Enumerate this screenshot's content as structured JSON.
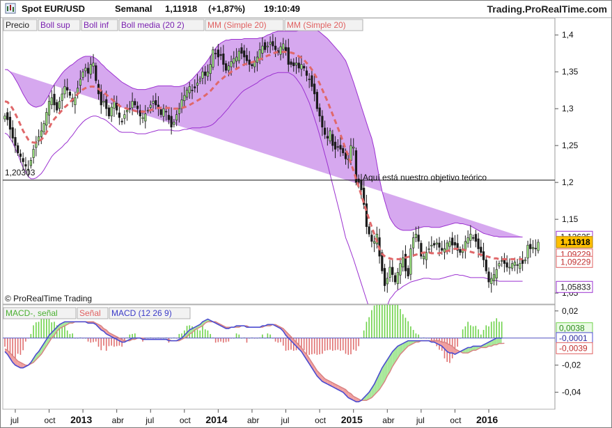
{
  "header": {
    "instrument": "Spot EUR/USD",
    "timeframe": "Semanal",
    "last_price": "1,11918",
    "change": "(+1,87%)",
    "time": "19:10:49",
    "brand": "Trading.ProRealTime.com"
  },
  "colors": {
    "band_fill": "#d6a8ef",
    "band_line": "#9b30d0",
    "sma": "#e0686a",
    "candle_up": "#9be37f",
    "candle_down": "#1a1a1a",
    "macd_line": "#4b4bd0",
    "signal_line": "#d88080",
    "hist_pos": "#6ed24a",
    "hist_neg": "#e07070",
    "last_price_bg": "#ffc000"
  },
  "chart_data": [
    {
      "type": "candlestick",
      "legend": [
        "Precio",
        "Boll sup",
        "Boll inf",
        "Boll media (20 2)",
        "MM (Simple 20)",
        "MM (Simple 20)"
      ],
      "y_ticks": [
        "1,4",
        "1,35",
        "1,3",
        "1,25",
        "1,2",
        "1,15",
        "1,05"
      ],
      "ylim": [
        1.035,
        1.42
      ],
      "price_labels": {
        "boll_sup": "1,12625",
        "last": "1,11918",
        "hidden": "1,09229",
        "boll_inf": "1,05833"
      },
      "horizontal_line": {
        "value": 1.20303,
        "label": "1,20303"
      },
      "annotation": "Aquí está nuestro objetivo teórico",
      "copyright": "© ProRealTime Trading",
      "series": {
        "close": [
          1.29,
          1.285,
          1.272,
          1.26,
          1.25,
          1.24,
          1.235,
          1.228,
          1.222,
          1.218,
          1.23,
          1.245,
          1.255,
          1.262,
          1.27,
          1.28,
          1.295,
          1.31,
          1.315,
          1.305,
          1.298,
          1.31,
          1.32,
          1.33,
          1.325,
          1.318,
          1.31,
          1.315,
          1.328,
          1.34,
          1.35,
          1.355,
          1.348,
          1.36,
          1.362,
          1.338,
          1.32,
          1.305,
          1.31,
          1.3,
          1.29,
          1.302,
          1.31,
          1.298,
          1.288,
          1.282,
          1.292,
          1.298,
          1.3,
          1.31,
          1.305,
          1.3,
          1.29,
          1.288,
          1.293,
          1.298,
          1.305,
          1.31,
          1.305,
          1.3,
          1.292,
          1.3,
          1.296,
          1.285,
          1.275,
          1.282,
          1.292,
          1.3,
          1.312,
          1.318,
          1.325,
          1.33,
          1.325,
          1.328,
          1.335,
          1.34,
          1.35,
          1.345,
          1.35,
          1.36,
          1.38,
          1.375,
          1.37,
          1.372,
          1.36,
          1.352,
          1.358,
          1.364,
          1.368,
          1.37,
          1.378,
          1.375,
          1.37,
          1.365,
          1.36,
          1.358,
          1.365,
          1.37,
          1.38,
          1.385,
          1.38,
          1.385,
          1.39,
          1.385,
          1.38,
          1.376,
          1.384,
          1.388,
          1.378,
          1.36,
          1.36,
          1.358,
          1.362,
          1.355,
          1.36,
          1.355,
          1.345,
          1.34,
          1.33,
          1.32,
          1.3,
          1.29,
          1.275,
          1.265,
          1.26,
          1.27,
          1.25,
          1.245,
          1.248,
          1.245,
          1.24,
          1.232,
          1.232,
          1.25,
          1.248,
          1.2,
          1.2,
          1.19,
          1.17,
          1.14,
          1.13,
          1.12,
          1.12,
          1.13,
          1.1,
          1.08,
          1.06,
          1.07,
          1.085,
          1.075,
          1.065,
          1.078,
          1.09,
          1.098,
          1.08,
          1.073,
          1.11,
          1.125,
          1.13,
          1.12,
          1.1,
          1.1,
          1.105,
          1.11,
          1.115,
          1.115,
          1.118,
          1.112,
          1.108,
          1.11,
          1.118,
          1.12,
          1.115,
          1.115,
          1.108,
          1.105,
          1.11,
          1.12,
          1.125,
          1.13,
          1.125,
          1.12,
          1.11,
          1.105,
          1.095,
          1.08,
          1.065,
          1.07,
          1.075,
          1.082,
          1.09,
          1.094,
          1.09,
          1.085,
          1.085,
          1.09,
          1.092,
          1.088,
          1.09,
          1.09,
          1.095,
          1.115,
          1.11,
          1.112,
          1.11,
          1.119
        ],
        "sma20": [
          1.31,
          1.309,
          1.305,
          1.3,
          1.293,
          1.286,
          1.278,
          1.27,
          1.264,
          1.258,
          1.255,
          1.254,
          1.254,
          1.256,
          1.258,
          1.262,
          1.268,
          1.274,
          1.281,
          1.286,
          1.29,
          1.294,
          1.298,
          1.302,
          1.305,
          1.309,
          1.312,
          1.316,
          1.32,
          1.323,
          1.326,
          1.328,
          1.329,
          1.33,
          1.33,
          1.329,
          1.327,
          1.324,
          1.322,
          1.319,
          1.316,
          1.313,
          1.31,
          1.307,
          1.304,
          1.302,
          1.301,
          1.3,
          1.299,
          1.298,
          1.297,
          1.296,
          1.296,
          1.296,
          1.296,
          1.297,
          1.298,
          1.299,
          1.3,
          1.301,
          1.301,
          1.301,
          1.301,
          1.301,
          1.301,
          1.3,
          1.3,
          1.3,
          1.301,
          1.302,
          1.303,
          1.305,
          1.307,
          1.309,
          1.311,
          1.313,
          1.316,
          1.318,
          1.321,
          1.324,
          1.328,
          1.332,
          1.336,
          1.339,
          1.342,
          1.345,
          1.347,
          1.35,
          1.352,
          1.354,
          1.356,
          1.358,
          1.36,
          1.361,
          1.362,
          1.363,
          1.364,
          1.365,
          1.367,
          1.368,
          1.37,
          1.372,
          1.373,
          1.375,
          1.376,
          1.377,
          1.377,
          1.377,
          1.377,
          1.377,
          1.376,
          1.375,
          1.373,
          1.371,
          1.369,
          1.366,
          1.362,
          1.358,
          1.353,
          1.347,
          1.341,
          1.334,
          1.326,
          1.318,
          1.31,
          1.301,
          1.292,
          1.283,
          1.274,
          1.265,
          1.255,
          1.245,
          1.236,
          1.226,
          1.216,
          1.205,
          1.194,
          1.183,
          1.172,
          1.161,
          1.15,
          1.14,
          1.13,
          1.12,
          1.11,
          1.103,
          1.1,
          1.098,
          1.097,
          1.096,
          1.096,
          1.096,
          1.096,
          1.097,
          1.098,
          1.099,
          1.1,
          1.101,
          1.102,
          1.103,
          1.104,
          1.105,
          1.105,
          1.105,
          1.104,
          1.104,
          1.104,
          1.104,
          1.105,
          1.106,
          1.107,
          1.108,
          1.109,
          1.11,
          1.11,
          1.109,
          1.109,
          1.108,
          1.107,
          1.106,
          1.105,
          1.104,
          1.103,
          1.102,
          1.101,
          1.1,
          1.099,
          1.098,
          1.097,
          1.097,
          1.096,
          1.096,
          1.096,
          1.096,
          1.096,
          1.096,
          1.096,
          1.096,
          1.096,
          1.096
        ],
        "boll_width": [
          0.043,
          0.044,
          0.045,
          0.046,
          0.047,
          0.048,
          0.049,
          0.05,
          0.05,
          0.05,
          0.05,
          0.049,
          0.048,
          0.047,
          0.046,
          0.045,
          0.045,
          0.045,
          0.046,
          0.047,
          0.048,
          0.049,
          0.05,
          0.05,
          0.05,
          0.049,
          0.048,
          0.047,
          0.046,
          0.045,
          0.044,
          0.043,
          0.042,
          0.041,
          0.04,
          0.039,
          0.038,
          0.037,
          0.036,
          0.035,
          0.035,
          0.035,
          0.035,
          0.035,
          0.035,
          0.034,
          0.033,
          0.032,
          0.031,
          0.03,
          0.03,
          0.03,
          0.03,
          0.03,
          0.03,
          0.03,
          0.03,
          0.03,
          0.03,
          0.03,
          0.03,
          0.03,
          0.03,
          0.03,
          0.03,
          0.03,
          0.03,
          0.03,
          0.03,
          0.03,
          0.031,
          0.032,
          0.033,
          0.035,
          0.037,
          0.039,
          0.041,
          0.043,
          0.045,
          0.047,
          0.049,
          0.05,
          0.05,
          0.05,
          0.049,
          0.048,
          0.046,
          0.044,
          0.042,
          0.04,
          0.038,
          0.036,
          0.035,
          0.034,
          0.033,
          0.032,
          0.031,
          0.03,
          0.029,
          0.028,
          0.028,
          0.028,
          0.028,
          0.028,
          0.028,
          0.028,
          0.028,
          0.028,
          0.028,
          0.028,
          0.029,
          0.03,
          0.032,
          0.035,
          0.038,
          0.042,
          0.046,
          0.05,
          0.055,
          0.06,
          0.065,
          0.07,
          0.075,
          0.08,
          0.085,
          0.09,
          0.095,
          0.1,
          0.105,
          0.11,
          0.115,
          0.12,
          0.12,
          0.12,
          0.12,
          0.12,
          0.12,
          0.12,
          0.12,
          0.12,
          0.12,
          0.12,
          0.115,
          0.105,
          0.095,
          0.085,
          0.075,
          0.065,
          0.055,
          0.05,
          0.045,
          0.042,
          0.04,
          0.038,
          0.037,
          0.036,
          0.035,
          0.035,
          0.035,
          0.035,
          0.035,
          0.035,
          0.035,
          0.035,
          0.035,
          0.035,
          0.035,
          0.035,
          0.035,
          0.035,
          0.035,
          0.035,
          0.035,
          0.035,
          0.035,
          0.035,
          0.035,
          0.035,
          0.035,
          0.035,
          0.034,
          0.033,
          0.032,
          0.031,
          0.03,
          0.03,
          0.03,
          0.03,
          0.03,
          0.03,
          0.03,
          0.03,
          0.03,
          0.03,
          0.03,
          0.03,
          0.03,
          0.03,
          0.03,
          0.03,
          0.03
        ]
      }
    },
    {
      "type": "macd",
      "legend": [
        "MACD-, señal",
        "Señal",
        "MACD (12 26 9)"
      ],
      "y_ticks": [
        "0,02",
        "-0,02",
        "-0,04"
      ],
      "ylim": [
        -0.052,
        0.024
      ],
      "labels": {
        "hist": "0,0038",
        "macd": "-0,0001",
        "signal": "-0,0039"
      },
      "series": {
        "macd": [
          -0.01,
          -0.012,
          -0.015,
          -0.018,
          -0.02,
          -0.021,
          -0.022,
          -0.022,
          -0.021,
          -0.02,
          -0.018,
          -0.015,
          -0.012,
          -0.01,
          -0.007,
          -0.004,
          -0.001,
          0.002,
          0.004,
          0.006,
          0.008,
          0.01,
          0.011,
          0.012,
          0.012,
          0.012,
          0.012,
          0.012,
          0.012,
          0.012,
          0.012,
          0.012,
          0.011,
          0.011,
          0.011,
          0.01,
          0.008,
          0.006,
          0.005,
          0.003,
          0.002,
          0.001,
          0.0,
          -0.001,
          -0.002,
          -0.003,
          -0.003,
          -0.002,
          -0.001,
          0.0,
          0.0,
          0.0,
          0.0,
          -0.001,
          -0.001,
          -0.001,
          -0.001,
          -0.001,
          -0.001,
          -0.001,
          -0.001,
          -0.001,
          -0.001,
          -0.002,
          -0.002,
          -0.002,
          -0.002,
          -0.001,
          0.0,
          0.002,
          0.004,
          0.006,
          0.007,
          0.008,
          0.009,
          0.01,
          0.012,
          0.013,
          0.014,
          0.013,
          0.012,
          0.011,
          0.01,
          0.009,
          0.008,
          0.007,
          0.007,
          0.008,
          0.008,
          0.009,
          0.009,
          0.009,
          0.009,
          0.008,
          0.008,
          0.008,
          0.008,
          0.008,
          0.008,
          0.009,
          0.009,
          0.01,
          0.01,
          0.01,
          0.009,
          0.008,
          0.007,
          0.005,
          0.002,
          0.0,
          -0.002,
          -0.004,
          -0.006,
          -0.008,
          -0.01,
          -0.013,
          -0.016,
          -0.019,
          -0.022,
          -0.025,
          -0.028,
          -0.03,
          -0.032,
          -0.033,
          -0.034,
          -0.035,
          -0.036,
          -0.037,
          -0.038,
          -0.039,
          -0.04,
          -0.042,
          -0.044,
          -0.045,
          -0.046,
          -0.047,
          -0.047,
          -0.046,
          -0.044,
          -0.042,
          -0.04,
          -0.037,
          -0.034,
          -0.03,
          -0.026,
          -0.022,
          -0.019,
          -0.016,
          -0.013,
          -0.01,
          -0.008,
          -0.006,
          -0.005,
          -0.004,
          -0.003,
          -0.002,
          -0.002,
          -0.002,
          -0.002,
          -0.002,
          -0.002,
          -0.002,
          -0.002,
          -0.002,
          -0.003,
          -0.003,
          -0.004,
          -0.005,
          -0.006,
          -0.008,
          -0.01,
          -0.011,
          -0.011,
          -0.012,
          -0.011,
          -0.01,
          -0.009,
          -0.008,
          -0.007,
          -0.007,
          -0.006,
          -0.006,
          -0.006,
          -0.006,
          -0.005,
          -0.004,
          -0.003,
          -0.002,
          -0.001,
          0.0,
          0.0,
          -0.0001
        ],
        "signal": [
          -0.008,
          -0.009,
          -0.011,
          -0.013,
          -0.015,
          -0.017,
          -0.018,
          -0.019,
          -0.02,
          -0.02,
          -0.019,
          -0.018,
          -0.016,
          -0.014,
          -0.012,
          -0.009,
          -0.006,
          -0.003,
          0.0,
          0.002,
          0.005,
          0.007,
          0.008,
          0.009,
          0.01,
          0.011,
          0.011,
          0.012,
          0.012,
          0.012,
          0.012,
          0.012,
          0.012,
          0.012,
          0.012,
          0.011,
          0.01,
          0.009,
          0.007,
          0.006,
          0.004,
          0.003,
          0.002,
          0.001,
          0.0,
          -0.001,
          -0.002,
          -0.002,
          -0.002,
          -0.001,
          -0.001,
          0.0,
          0.0,
          0.0,
          -0.001,
          -0.001,
          -0.001,
          -0.001,
          -0.001,
          -0.001,
          -0.001,
          -0.001,
          -0.001,
          -0.001,
          -0.002,
          -0.002,
          -0.002,
          -0.002,
          -0.001,
          0.0,
          0.001,
          0.003,
          0.004,
          0.006,
          0.007,
          0.008,
          0.009,
          0.011,
          0.012,
          0.012,
          0.012,
          0.012,
          0.011,
          0.01,
          0.009,
          0.008,
          0.008,
          0.008,
          0.008,
          0.008,
          0.008,
          0.009,
          0.009,
          0.009,
          0.008,
          0.008,
          0.008,
          0.008,
          0.008,
          0.008,
          0.009,
          0.009,
          0.009,
          0.01,
          0.01,
          0.009,
          0.008,
          0.007,
          0.005,
          0.003,
          0.001,
          -0.001,
          -0.003,
          -0.005,
          -0.007,
          -0.01,
          -0.012,
          -0.015,
          -0.018,
          -0.021,
          -0.024,
          -0.026,
          -0.028,
          -0.03,
          -0.031,
          -0.032,
          -0.033,
          -0.034,
          -0.035,
          -0.036,
          -0.037,
          -0.038,
          -0.04,
          -0.041,
          -0.043,
          -0.044,
          -0.045,
          -0.046,
          -0.046,
          -0.046,
          -0.045,
          -0.044,
          -0.042,
          -0.04,
          -0.038,
          -0.035,
          -0.032,
          -0.028,
          -0.025,
          -0.021,
          -0.018,
          -0.015,
          -0.012,
          -0.01,
          -0.008,
          -0.006,
          -0.005,
          -0.004,
          -0.003,
          -0.003,
          -0.002,
          -0.002,
          -0.002,
          -0.002,
          -0.002,
          -0.002,
          -0.002,
          -0.002,
          -0.003,
          -0.003,
          -0.004,
          -0.005,
          -0.006,
          -0.008,
          -0.009,
          -0.01,
          -0.011,
          -0.011,
          -0.011,
          -0.01,
          -0.009,
          -0.009,
          -0.008,
          -0.007,
          -0.007,
          -0.007,
          -0.006,
          -0.006,
          -0.005,
          -0.005,
          -0.004,
          -0.004,
          -0.0039
        ]
      }
    }
  ],
  "x_axis": {
    "ticks": [
      {
        "label": "jul",
        "i": 4,
        "bold": false
      },
      {
        "label": "oct",
        "i": 17,
        "bold": false
      },
      {
        "label": "2013",
        "i": 30,
        "bold": true
      },
      {
        "label": "abr",
        "i": 43,
        "bold": false
      },
      {
        "label": "jul",
        "i": 56,
        "bold": false
      },
      {
        "label": "oct",
        "i": 69,
        "bold": false
      },
      {
        "label": "2014",
        "i": 82,
        "bold": true
      },
      {
        "label": "abr",
        "i": 95,
        "bold": false
      },
      {
        "label": "jul",
        "i": 108,
        "bold": false
      },
      {
        "label": "oct",
        "i": 121,
        "bold": false
      },
      {
        "label": "2015",
        "i": 134,
        "bold": true
      },
      {
        "label": "abr",
        "i": 147,
        "bold": false
      },
      {
        "label": "jul",
        "i": 160,
        "bold": false
      },
      {
        "label": "oct",
        "i": 173,
        "bold": false
      },
      {
        "label": "2016",
        "i": 186,
        "bold": true
      }
    ]
  }
}
